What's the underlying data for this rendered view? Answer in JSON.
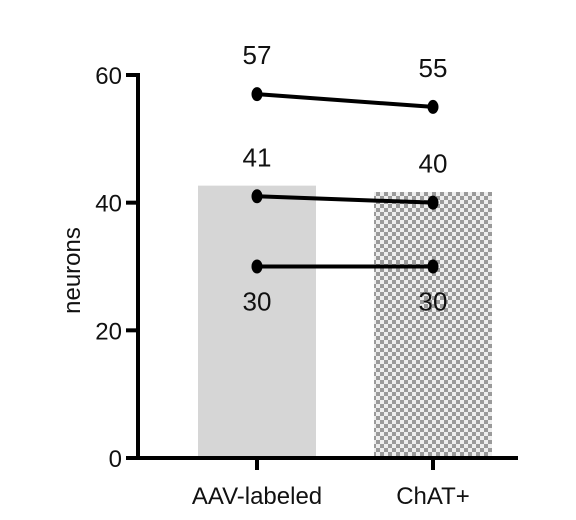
{
  "chart_data": {
    "type": "bar",
    "categories": [
      "AAV-labeled",
      "ChAT+"
    ],
    "bar_values": [
      42.67,
      41.67
    ],
    "bar_styles": [
      "solid-light-gray",
      "checkered-gray"
    ],
    "paired_lines": [
      {
        "values": [
          57,
          55
        ],
        "labels": [
          "57",
          "55"
        ],
        "label_position": "above"
      },
      {
        "values": [
          41,
          40
        ],
        "labels": [
          "41",
          "40"
        ],
        "label_position": "above"
      },
      {
        "values": [
          30,
          30
        ],
        "labels": [
          "30",
          "30"
        ],
        "label_position": "below"
      }
    ],
    "xlabel": "",
    "ylabel": "neurons",
    "ylim": [
      0,
      60
    ],
    "yticks": [
      "0",
      "20",
      "40",
      "60"
    ],
    "grid": false,
    "legend": "none"
  },
  "colors": {
    "bar_solid": "#d6d6d6",
    "checker_light": "#eeeeee",
    "checker_dark": "#9a9a9a",
    "line": "#000000",
    "axis": "#000000"
  }
}
